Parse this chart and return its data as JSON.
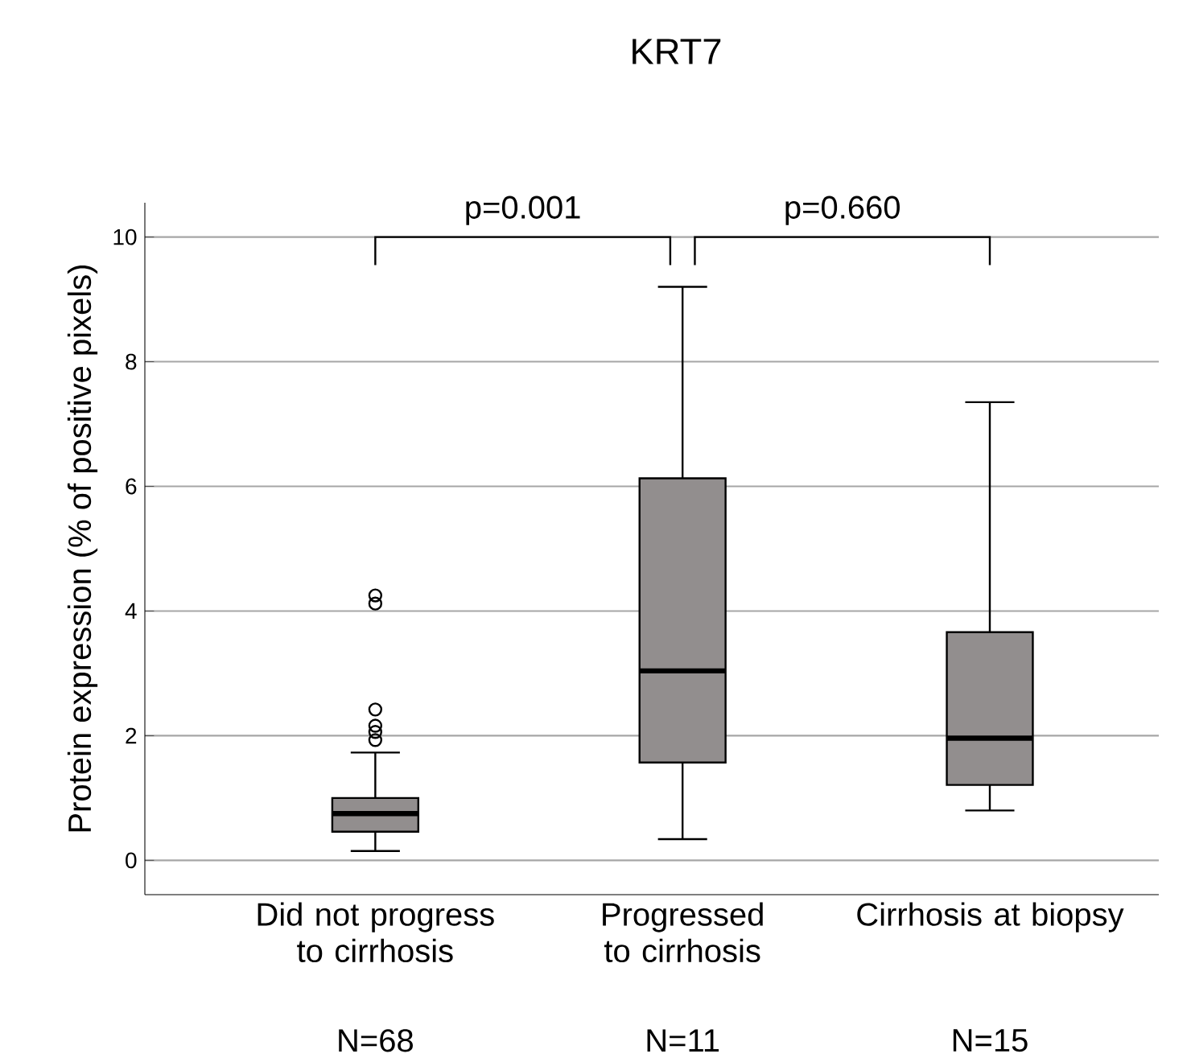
{
  "chart_data": {
    "type": "box",
    "title": "KRT7",
    "ylabel": "Protein expression (% of positive pixels)",
    "categories": [
      "Did not progress to cirrhosis",
      "Progressed to cirrhosis",
      "Cirrhosis at biopsy"
    ],
    "color": "#928e8e",
    "boxes": [
      {
        "low": 0.15,
        "q1": 0.46,
        "median": 0.75,
        "q3": 1.0,
        "high": 1.73,
        "outliers": [
          4.25,
          4.12,
          2.42,
          2.16,
          2.06,
          1.93
        ]
      },
      {
        "low": 0.34,
        "q1": 1.57,
        "median": 3.04,
        "q3": 6.13,
        "high": 9.2
      },
      {
        "low": 0.8,
        "q1": 1.21,
        "median": 1.96,
        "q3": 3.66,
        "high": 7.35
      }
    ],
    "ylim": [
      -0.55,
      10.55
    ],
    "yticks": [
      0,
      2,
      4,
      6,
      8,
      10
    ],
    "grid": "y",
    "annotations": [
      "p=0.001",
      "p=0.660",
      "N=68",
      "N=11",
      "N=15"
    ]
  }
}
